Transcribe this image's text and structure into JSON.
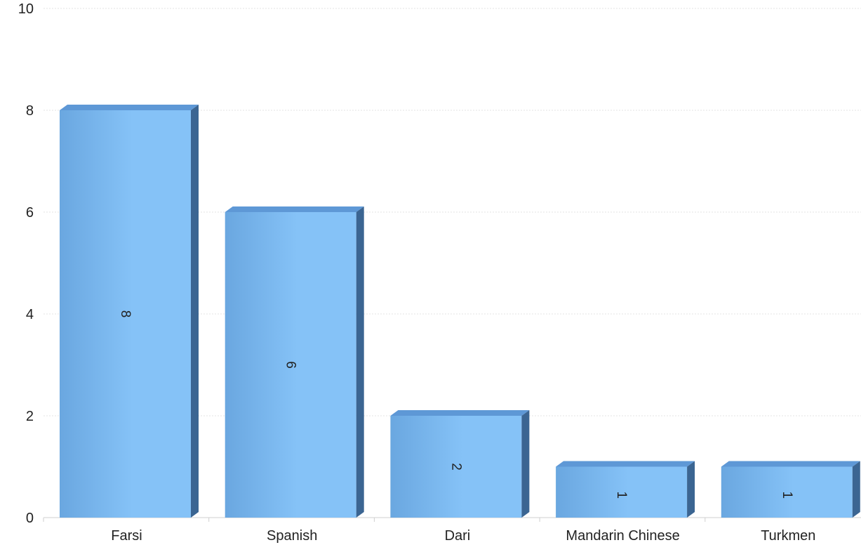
{
  "chart_data": {
    "type": "bar",
    "title": "",
    "xlabel": "",
    "ylabel": "",
    "categories": [
      "Farsi",
      "Spanish",
      "Dari",
      "Mandarin Chinese",
      "Turkmen"
    ],
    "values": [
      8,
      6,
      2,
      1,
      1
    ],
    "data_labels": [
      "8",
      "6",
      "2",
      "1",
      "1"
    ],
    "ylim": [
      0,
      10
    ],
    "yticks": [
      0,
      2,
      4,
      6,
      8,
      10
    ],
    "ytick_labels": [
      "0",
      "2",
      "4",
      "6",
      "8",
      "10"
    ],
    "grid": true,
    "legend": "none",
    "style": "3d",
    "data_label_rotation": "vertical",
    "colors": {
      "bar_front_light": "#85c2f7",
      "bar_front_dark": "#6aa7e0",
      "bar_top": "#5e98d6",
      "bar_side": "#3b6592",
      "grid": "#e3e3e3",
      "axis": "#cfcfcf"
    }
  }
}
